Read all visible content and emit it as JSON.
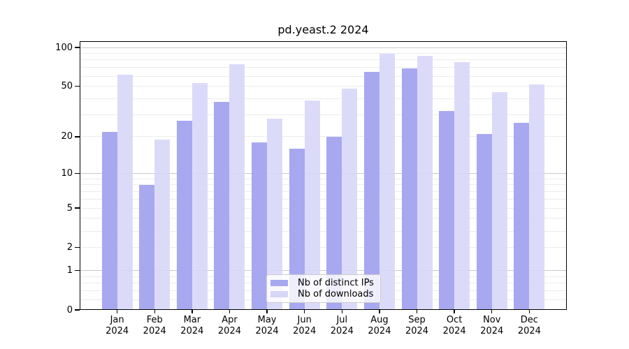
{
  "chart_data": {
    "type": "bar",
    "title": "pd.yeast.2 2024",
    "categories": [
      "Jan",
      "Feb",
      "Mar",
      "Apr",
      "May",
      "Jun",
      "Jul",
      "Aug",
      "Sep",
      "Oct",
      "Nov",
      "Dec"
    ],
    "year": "2024",
    "series": [
      {
        "name": "Nb of distinct IPs",
        "color": "#a8a8f0",
        "values": [
          22,
          8,
          27,
          38,
          18,
          16,
          20,
          65,
          69,
          32,
          21,
          26
        ]
      },
      {
        "name": "Nb of downloads",
        "color": "#d6d6f8",
        "values": [
          62,
          19,
          53,
          74,
          28,
          39,
          48,
          89,
          86,
          77,
          45,
          52
        ]
      }
    ],
    "y_axis": {
      "scale": "log1p",
      "tick_labels": [
        "100",
        "50",
        "20",
        "10",
        "5",
        "2",
        "1",
        "0"
      ],
      "tick_values": [
        100,
        50,
        20,
        10,
        5,
        2,
        1,
        0
      ],
      "major_gridlines": [
        1,
        10,
        100
      ],
      "minor_gridlines": [
        0.2,
        0.4,
        0.6,
        0.8,
        2,
        3,
        4,
        5,
        6,
        7,
        8,
        9,
        20,
        30,
        40,
        50,
        60,
        70,
        80,
        90
      ],
      "ylim": [
        0,
        100
      ]
    },
    "legend": {
      "position": "bottom-center-inside",
      "entries": [
        "Nb of distinct IPs",
        "Nb of downloads"
      ]
    },
    "grid": "on"
  }
}
